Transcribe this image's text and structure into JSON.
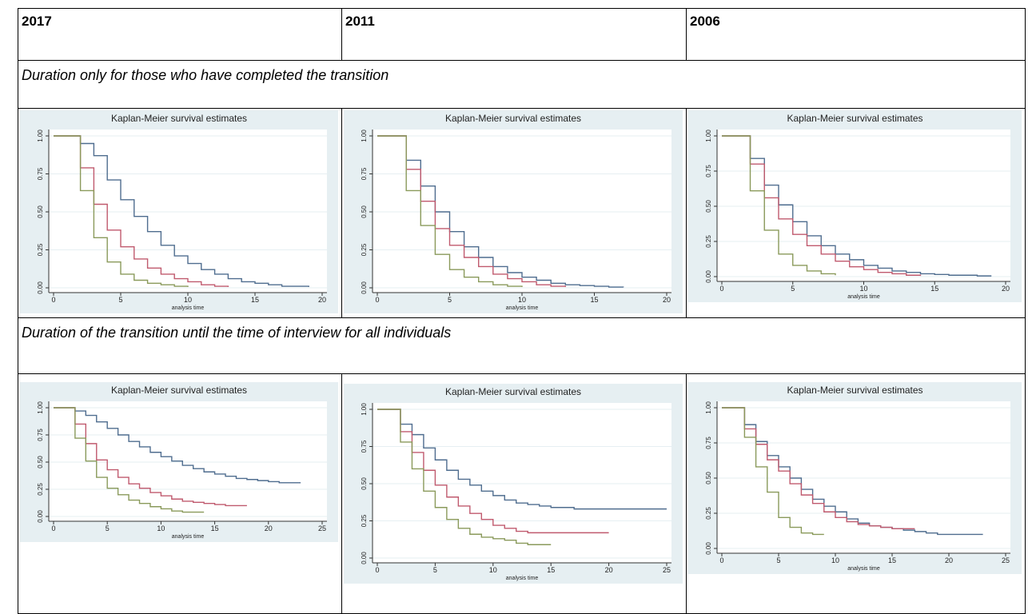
{
  "table": {
    "headers": [
      "2017",
      "2011",
      "2006"
    ],
    "sections": [
      "Duration only for those who have completed the transition",
      "Duration of the transition until the time of interview for all individuals"
    ]
  },
  "charts": [
    {
      "type": "step",
      "title": "Kaplan-Meier survival estimates",
      "xlabel": "analysis time",
      "xlim": [
        0,
        20
      ],
      "xticks": [
        0,
        5,
        10,
        15,
        20
      ],
      "ylim": [
        0,
        1
      ],
      "yticks": [
        {
          "value": 0,
          "label": "0.00"
        },
        {
          "value": 0.25,
          "label": "0.25"
        },
        {
          "value": 0.5,
          "label": "0.50"
        },
        {
          "value": 0.75,
          "label": "0.75"
        },
        {
          "value": 1,
          "label": "1.00"
        }
      ],
      "grid": true,
      "series": [
        {
          "color": "#4f6d8f",
          "x": [
            0,
            1,
            2,
            3,
            4,
            5,
            6,
            7,
            8,
            9,
            10,
            11,
            12,
            13,
            14,
            15,
            16,
            17,
            18,
            19
          ],
          "values": [
            1,
            1,
            0.95,
            0.87,
            0.71,
            0.58,
            0.47,
            0.37,
            0.28,
            0.21,
            0.16,
            0.12,
            0.09,
            0.06,
            0.04,
            0.03,
            0.02,
            0.01,
            0.01,
            0.005
          ]
        },
        {
          "color": "#c05a6e",
          "x": [
            0,
            1,
            2,
            3,
            4,
            5,
            6,
            7,
            8,
            9,
            10,
            11,
            12,
            13
          ],
          "values": [
            1,
            1,
            0.79,
            0.55,
            0.38,
            0.27,
            0.19,
            0.13,
            0.09,
            0.06,
            0.04,
            0.02,
            0.01,
            0.005
          ]
        },
        {
          "color": "#8a9a5b",
          "x": [
            0,
            1,
            2,
            3,
            4,
            5,
            6,
            7,
            8,
            9,
            10
          ],
          "values": [
            1,
            1,
            0.64,
            0.33,
            0.17,
            0.09,
            0.05,
            0.03,
            0.02,
            0.01,
            0.005
          ]
        }
      ]
    },
    {
      "type": "step",
      "title": "Kaplan-Meier survival estimates",
      "xlabel": "analysis time",
      "xlim": [
        0,
        20
      ],
      "xticks": [
        0,
        5,
        10,
        15,
        20
      ],
      "ylim": [
        0,
        1
      ],
      "yticks": [
        {
          "value": 0,
          "label": "0.00"
        },
        {
          "value": 0.25,
          "label": "0.25"
        },
        {
          "value": 0.5,
          "label": "0.50"
        },
        {
          "value": 0.75,
          "label": "0.75"
        },
        {
          "value": 1,
          "label": "1.00"
        }
      ],
      "grid": true,
      "series": [
        {
          "color": "#4f6d8f",
          "x": [
            0,
            1,
            2,
            3,
            4,
            5,
            6,
            7,
            8,
            9,
            10,
            11,
            12,
            13,
            14,
            15,
            16,
            17
          ],
          "values": [
            1,
            1,
            0.84,
            0.67,
            0.5,
            0.37,
            0.27,
            0.2,
            0.14,
            0.1,
            0.07,
            0.05,
            0.03,
            0.02,
            0.015,
            0.01,
            0.005,
            0.003
          ]
        },
        {
          "color": "#c05a6e",
          "x": [
            0,
            1,
            2,
            3,
            4,
            5,
            6,
            7,
            8,
            9,
            10,
            11,
            12,
            13
          ],
          "values": [
            1,
            1,
            0.78,
            0.57,
            0.39,
            0.28,
            0.2,
            0.14,
            0.09,
            0.06,
            0.04,
            0.02,
            0.01,
            0.005
          ]
        },
        {
          "color": "#8a9a5b",
          "x": [
            0,
            1,
            2,
            3,
            4,
            5,
            6,
            7,
            8,
            9,
            10
          ],
          "values": [
            1,
            1,
            0.64,
            0.41,
            0.22,
            0.12,
            0.07,
            0.04,
            0.02,
            0.01,
            0.005
          ]
        }
      ]
    },
    {
      "type": "step",
      "title": "Kaplan-Meier survival estimates",
      "xlabel": "analysis time",
      "xlim": [
        0,
        20
      ],
      "xticks": [
        0,
        5,
        10,
        15,
        20
      ],
      "ylim": [
        0,
        1
      ],
      "yticks": [
        {
          "value": 0,
          "label": "0.00"
        },
        {
          "value": 0.25,
          "label": "0.25"
        },
        {
          "value": 0.5,
          "label": "0.50"
        },
        {
          "value": 0.75,
          "label": "0.75"
        },
        {
          "value": 1,
          "label": "1.00"
        }
      ],
      "grid": true,
      "series": [
        {
          "color": "#4f6d8f",
          "x": [
            0,
            1,
            2,
            3,
            4,
            5,
            6,
            7,
            8,
            9,
            10,
            11,
            12,
            13,
            14,
            15,
            16,
            17,
            18,
            19
          ],
          "values": [
            1,
            1,
            0.84,
            0.65,
            0.51,
            0.39,
            0.29,
            0.22,
            0.16,
            0.12,
            0.08,
            0.06,
            0.04,
            0.03,
            0.02,
            0.015,
            0.01,
            0.01,
            0.005,
            0.005
          ]
        },
        {
          "color": "#c05a6e",
          "x": [
            0,
            1,
            2,
            3,
            4,
            5,
            6,
            7,
            8,
            9,
            10,
            11,
            12,
            13,
            14
          ],
          "values": [
            1,
            1,
            0.8,
            0.56,
            0.41,
            0.3,
            0.22,
            0.16,
            0.11,
            0.07,
            0.05,
            0.03,
            0.02,
            0.01,
            0.005
          ]
        },
        {
          "color": "#8a9a5b",
          "x": [
            0,
            1,
            2,
            3,
            4,
            5,
            6,
            7,
            8
          ],
          "values": [
            1,
            1,
            0.61,
            0.33,
            0.16,
            0.08,
            0.04,
            0.02,
            0.01
          ]
        }
      ]
    },
    {
      "type": "step",
      "title": "Kaplan-Meier survival estimates",
      "xlabel": "analysis time",
      "xlim": [
        0,
        25
      ],
      "xticks": [
        0,
        5,
        10,
        15,
        20,
        25
      ],
      "ylim": [
        0,
        1
      ],
      "yticks": [
        {
          "value": 0,
          "label": "0.00"
        },
        {
          "value": 0.25,
          "label": "0.25"
        },
        {
          "value": 0.5,
          "label": "0.50"
        },
        {
          "value": 0.75,
          "label": "0.75"
        },
        {
          "value": 1,
          "label": "1.00"
        }
      ],
      "grid": true,
      "series": [
        {
          "color": "#4f6d8f",
          "x": [
            0,
            1,
            2,
            3,
            4,
            5,
            6,
            7,
            8,
            9,
            10,
            11,
            12,
            13,
            14,
            15,
            16,
            17,
            18,
            19,
            20,
            21,
            22,
            23
          ],
          "values": [
            1,
            1,
            0.97,
            0.93,
            0.87,
            0.81,
            0.75,
            0.69,
            0.64,
            0.59,
            0.55,
            0.51,
            0.47,
            0.44,
            0.41,
            0.39,
            0.37,
            0.35,
            0.34,
            0.33,
            0.32,
            0.31,
            0.31,
            0.31
          ]
        },
        {
          "color": "#c05a6e",
          "x": [
            0,
            1,
            2,
            3,
            4,
            5,
            6,
            7,
            8,
            9,
            10,
            11,
            12,
            13,
            14,
            15,
            16,
            17,
            18
          ],
          "values": [
            1,
            1,
            0.85,
            0.67,
            0.52,
            0.43,
            0.36,
            0.3,
            0.26,
            0.22,
            0.19,
            0.16,
            0.14,
            0.13,
            0.12,
            0.11,
            0.1,
            0.1,
            0.1
          ]
        },
        {
          "color": "#8a9a5b",
          "x": [
            0,
            1,
            2,
            3,
            4,
            5,
            6,
            7,
            8,
            9,
            10,
            11,
            12,
            13,
            14
          ],
          "values": [
            1,
            1,
            0.72,
            0.51,
            0.36,
            0.26,
            0.2,
            0.15,
            0.12,
            0.09,
            0.07,
            0.05,
            0.04,
            0.04,
            0.04
          ]
        }
      ]
    },
    {
      "type": "step",
      "title": "Kaplan-Meier survival estimates",
      "xlabel": "analysis time",
      "xlim": [
        0,
        25
      ],
      "xticks": [
        0,
        5,
        10,
        15,
        20,
        25
      ],
      "ylim": [
        0,
        1
      ],
      "yticks": [
        {
          "value": 0,
          "label": "0.00"
        },
        {
          "value": 0.25,
          "label": "0.25"
        },
        {
          "value": 0.5,
          "label": "0.50"
        },
        {
          "value": 0.75,
          "label": "0.75"
        },
        {
          "value": 1,
          "label": "1.00"
        }
      ],
      "grid": true,
      "series": [
        {
          "color": "#4f6d8f",
          "x": [
            0,
            1,
            2,
            3,
            4,
            5,
            6,
            7,
            8,
            9,
            10,
            11,
            12,
            13,
            14,
            15,
            16,
            17,
            18,
            19,
            20,
            21,
            22,
            23,
            24,
            25
          ],
          "values": [
            1,
            1,
            0.9,
            0.83,
            0.74,
            0.66,
            0.59,
            0.53,
            0.49,
            0.45,
            0.42,
            0.39,
            0.37,
            0.36,
            0.35,
            0.34,
            0.34,
            0.33,
            0.33,
            0.33,
            0.33,
            0.33,
            0.33,
            0.33,
            0.33,
            0.33
          ]
        },
        {
          "color": "#c05a6e",
          "x": [
            0,
            1,
            2,
            3,
            4,
            5,
            6,
            7,
            8,
            9,
            10,
            11,
            12,
            13,
            14,
            15,
            16,
            17,
            18,
            19,
            20
          ],
          "values": [
            1,
            1,
            0.85,
            0.71,
            0.59,
            0.49,
            0.41,
            0.35,
            0.3,
            0.26,
            0.22,
            0.2,
            0.18,
            0.17,
            0.17,
            0.17,
            0.17,
            0.17,
            0.17,
            0.17,
            0.17
          ]
        },
        {
          "color": "#8a9a5b",
          "x": [
            0,
            1,
            2,
            3,
            4,
            5,
            6,
            7,
            8,
            9,
            10,
            11,
            12,
            13,
            14,
            15
          ],
          "values": [
            1,
            1,
            0.78,
            0.6,
            0.45,
            0.34,
            0.26,
            0.2,
            0.16,
            0.14,
            0.13,
            0.12,
            0.1,
            0.09,
            0.09,
            0.09
          ]
        }
      ]
    },
    {
      "type": "step",
      "title": "Kaplan-Meier survival estimates",
      "xlabel": "analysis time",
      "xlim": [
        0,
        25
      ],
      "xticks": [
        0,
        5,
        10,
        15,
        20,
        25
      ],
      "ylim": [
        0,
        1
      ],
      "yticks": [
        {
          "value": 0,
          "label": "0.00"
        },
        {
          "value": 0.25,
          "label": "0.25"
        },
        {
          "value": 0.5,
          "label": "0.50"
        },
        {
          "value": 0.75,
          "label": "0.75"
        },
        {
          "value": 1,
          "label": "1.00"
        }
      ],
      "grid": true,
      "series": [
        {
          "color": "#4f6d8f",
          "x": [
            0,
            1,
            2,
            3,
            4,
            5,
            6,
            7,
            8,
            9,
            10,
            11,
            12,
            13,
            14,
            15,
            16,
            17,
            18,
            19,
            20,
            21,
            22,
            23
          ],
          "values": [
            1,
            1,
            0.88,
            0.76,
            0.66,
            0.58,
            0.5,
            0.42,
            0.35,
            0.3,
            0.26,
            0.21,
            0.18,
            0.16,
            0.15,
            0.14,
            0.13,
            0.12,
            0.11,
            0.1,
            0.1,
            0.1,
            0.1,
            0.1
          ]
        },
        {
          "color": "#c05a6e",
          "x": [
            0,
            1,
            2,
            3,
            4,
            5,
            6,
            7,
            8,
            9,
            10,
            11,
            12,
            13,
            14,
            15,
            16,
            17
          ],
          "values": [
            1,
            1,
            0.85,
            0.74,
            0.63,
            0.55,
            0.46,
            0.38,
            0.32,
            0.26,
            0.22,
            0.19,
            0.17,
            0.16,
            0.15,
            0.14,
            0.14,
            0.14
          ]
        },
        {
          "color": "#8a9a5b",
          "x": [
            0,
            1,
            2,
            3,
            4,
            5,
            6,
            7,
            8,
            9
          ],
          "values": [
            1,
            1,
            0.79,
            0.58,
            0.4,
            0.22,
            0.15,
            0.11,
            0.1,
            0.1
          ]
        }
      ]
    }
  ]
}
